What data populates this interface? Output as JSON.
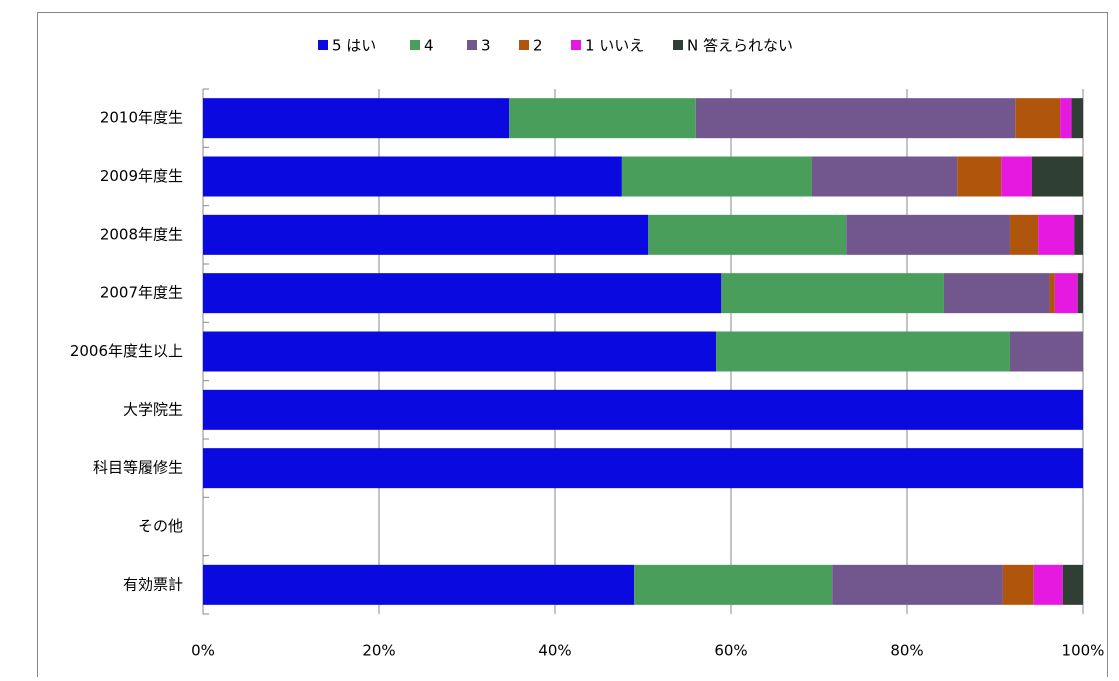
{
  "chart_data": {
    "type": "stacked-bar-horizontal",
    "categories": [
      "2010年度生",
      "2009年度生",
      "2008年度生",
      "2007年度生",
      "2006年度生以上",
      "大学院生",
      "科目等履修生",
      "その他",
      "有効票計"
    ],
    "series": [
      {
        "name": "5 はい",
        "color": "#0a0ae0",
        "values": [
          34.8,
          47.6,
          50.6,
          58.9,
          58.3,
          100,
          100,
          null,
          49.0
        ]
      },
      {
        "name": "4",
        "color": "#4a9e5c",
        "values": [
          21.2,
          21.6,
          22.5,
          25.3,
          33.4,
          0,
          0,
          null,
          22.5
        ]
      },
      {
        "name": "3",
        "color": "#72578f",
        "values": [
          36.3,
          16.5,
          18.6,
          12.0,
          8.3,
          0,
          0,
          null,
          19.4
        ]
      },
      {
        "name": "2",
        "color": "#b0560c",
        "values": [
          5.1,
          5.0,
          3.2,
          0.6,
          0,
          0,
          0,
          null,
          3.5
        ]
      },
      {
        "name": "1 いいえ",
        "color": "#e619e0",
        "values": [
          1.3,
          3.5,
          4.1,
          2.6,
          0,
          0,
          0,
          null,
          3.3
        ]
      },
      {
        "name": "N 答えられない",
        "color": "#2f3f33",
        "values": [
          1.3,
          5.8,
          1.0,
          0.6,
          0,
          0,
          0,
          null,
          2.3
        ]
      }
    ],
    "xlim": [
      0,
      100
    ],
    "xticks": [
      {
        "value": 0,
        "label": "0%"
      },
      {
        "value": 20,
        "label": "20%"
      },
      {
        "value": 40,
        "label": "40%"
      },
      {
        "value": 60,
        "label": "60%"
      },
      {
        "value": 80,
        "label": "80%"
      },
      {
        "value": 100,
        "label": "100%"
      }
    ],
    "grid": true,
    "legend": "top"
  }
}
